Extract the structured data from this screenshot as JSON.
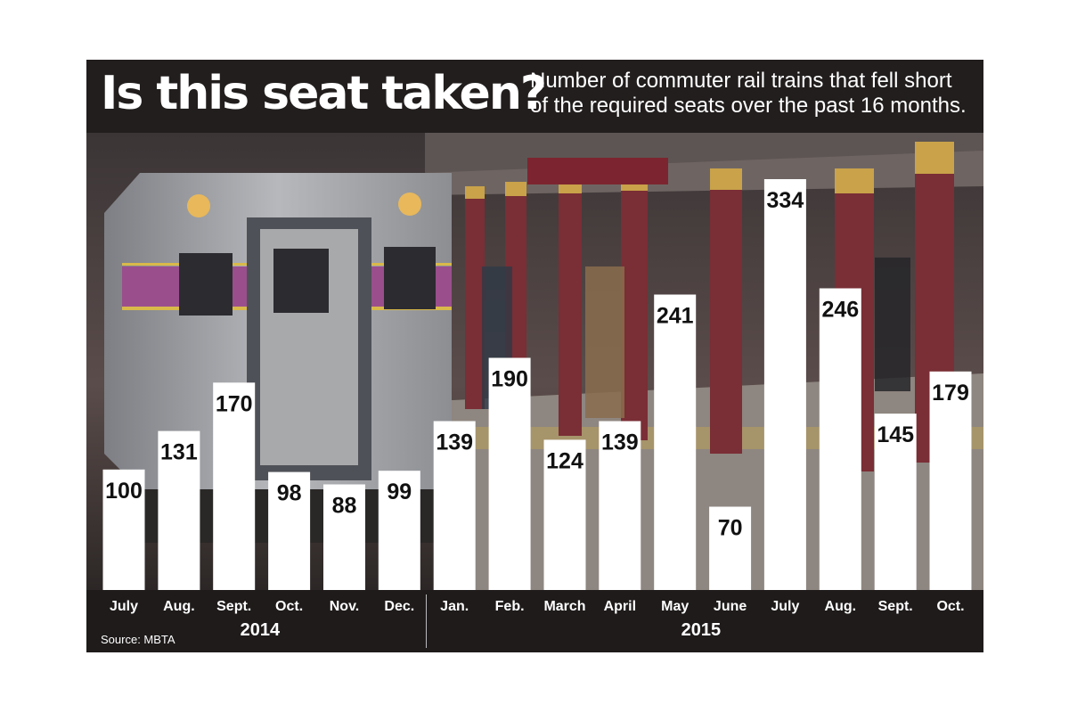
{
  "header": {
    "title": "Is this seat taken?",
    "subtitle": "Number of commuter rail trains that fell short of the required seats over the past 16 months."
  },
  "footer": {
    "source": "Source: MBTA"
  },
  "chart_data": {
    "type": "bar",
    "title": "Is this seat taken?",
    "subtitle": "Number of commuter rail trains that fell short of the required seats over the past 16 months.",
    "categories": [
      "July",
      "Aug.",
      "Sept.",
      "Oct.",
      "Nov.",
      "Dec.",
      "Jan.",
      "Feb.",
      "March",
      "April",
      "May",
      "June",
      "July",
      "Aug.",
      "Sept.",
      "Oct."
    ],
    "values": [
      100,
      131,
      170,
      98,
      88,
      99,
      139,
      190,
      124,
      139,
      241,
      70,
      334,
      246,
      145,
      179
    ],
    "groups": [
      {
        "label": "2014",
        "count": 6
      },
      {
        "label": "2015",
        "count": 10
      }
    ],
    "data_labels": true,
    "xlabel": "",
    "ylabel": "",
    "ylim": [
      0,
      334
    ],
    "grid": false,
    "legend": "none",
    "bar_color": "#ffffff",
    "background_color": "#1f1b1b"
  }
}
